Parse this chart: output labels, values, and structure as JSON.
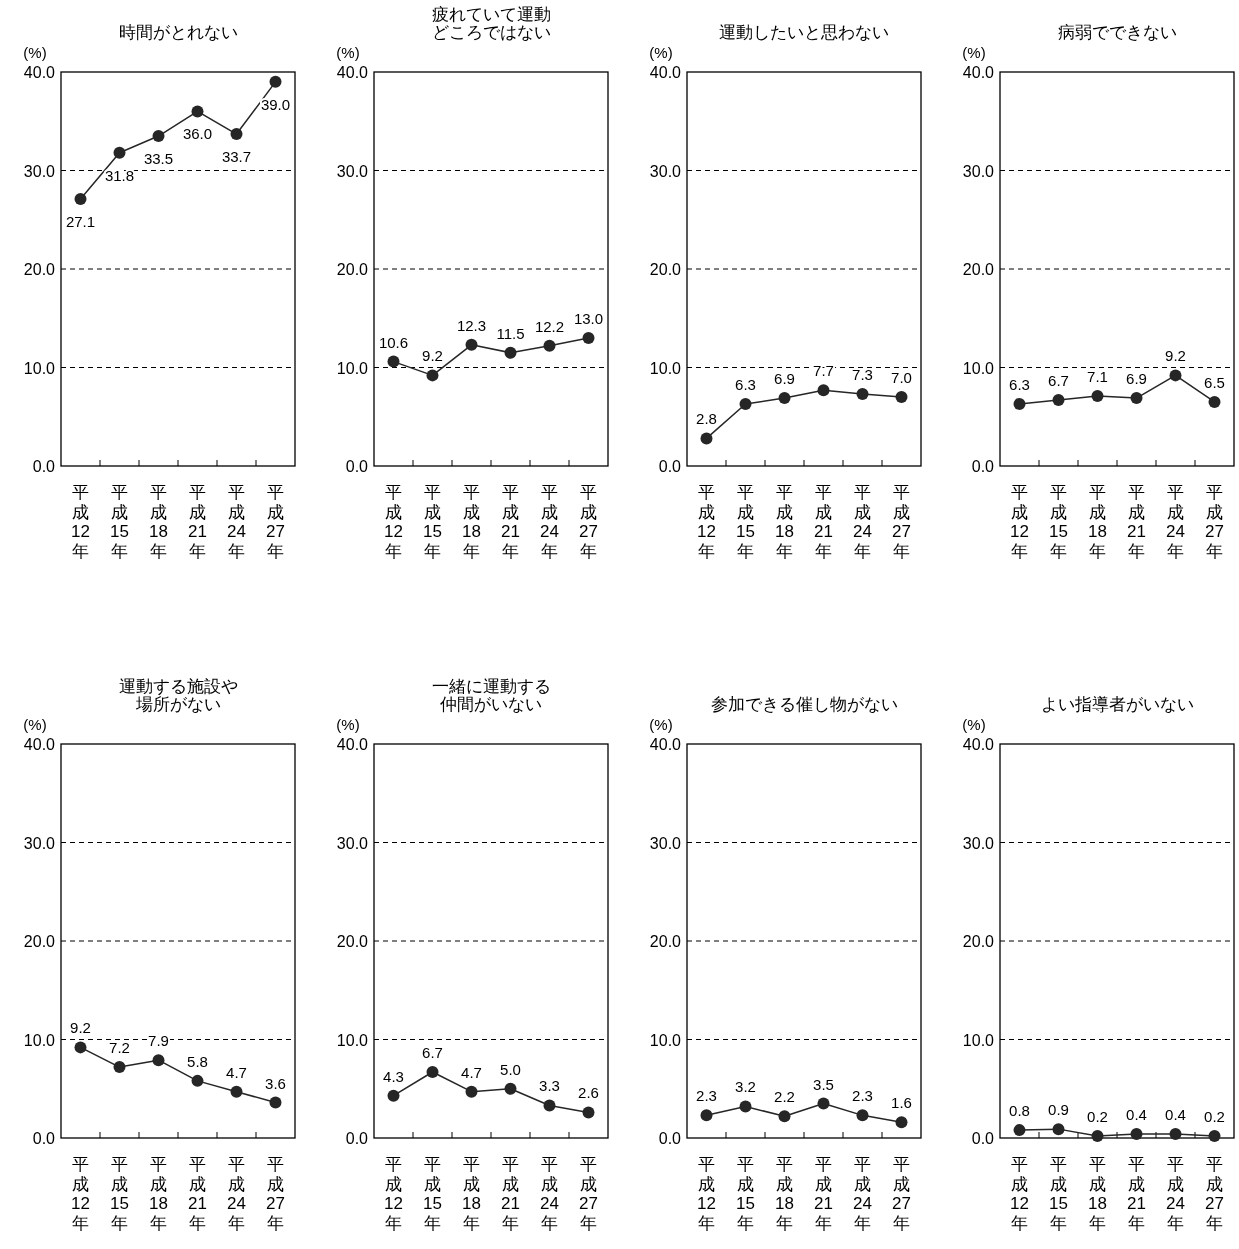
{
  "chart_data": [
    {
      "type": "line",
      "title": "時間がとれない",
      "ylabel": "(%)",
      "categories": [
        "平成12年",
        "平成15年",
        "平成18年",
        "平成21年",
        "平成24年",
        "平成27年"
      ],
      "series": [
        {
          "color": "#262626",
          "values": [
            27.1,
            31.8,
            33.5,
            36.0,
            33.7,
            39.0
          ],
          "value_labels": [
            "27.1",
            "31.8",
            "33.5",
            "36.0",
            "33.7",
            "39.0"
          ]
        }
      ],
      "ylim": [
        0,
        40
      ],
      "yticks": [
        {
          "value": 0,
          "label": "0.0"
        },
        {
          "value": 10,
          "label": "10.0"
        },
        {
          "value": 20,
          "label": "20.0"
        },
        {
          "value": 30,
          "label": "30.0"
        },
        {
          "value": 40,
          "label": "40.0"
        }
      ],
      "grid": "y",
      "marker": "circle",
      "line_style": "solid"
    },
    {
      "type": "line",
      "title": "疲れていて運動どころではない",
      "ylabel": "(%)",
      "categories": [
        "平成12年",
        "平成15年",
        "平成18年",
        "平成21年",
        "平成24年",
        "平成27年"
      ],
      "series": [
        {
          "color": "#262626",
          "values": [
            10.6,
            9.2,
            12.3,
            11.5,
            12.2,
            13.0
          ],
          "value_labels": [
            "10.6",
            "9.2",
            "12.3",
            "11.5",
            "12.2",
            "13.0"
          ]
        }
      ],
      "ylim": [
        0,
        40
      ],
      "yticks": [
        {
          "value": 0,
          "label": "0.0"
        },
        {
          "value": 10,
          "label": "10.0"
        },
        {
          "value": 20,
          "label": "20.0"
        },
        {
          "value": 30,
          "label": "30.0"
        },
        {
          "value": 40,
          "label": "40.0"
        }
      ],
      "grid": "y",
      "marker": "circle",
      "line_style": "solid"
    },
    {
      "type": "line",
      "title": "運動したいと思わない",
      "ylabel": "(%)",
      "categories": [
        "平成12年",
        "平成15年",
        "平成18年",
        "平成21年",
        "平成24年",
        "平成27年"
      ],
      "series": [
        {
          "color": "#262626",
          "values": [
            2.8,
            6.3,
            6.9,
            7.7,
            7.3,
            7.0
          ],
          "value_labels": [
            "2.8",
            "6.3",
            "6.9",
            "7.7",
            "7.3",
            "7.0"
          ]
        }
      ],
      "ylim": [
        0,
        40
      ],
      "yticks": [
        {
          "value": 0,
          "label": "0.0"
        },
        {
          "value": 10,
          "label": "10.0"
        },
        {
          "value": 20,
          "label": "20.0"
        },
        {
          "value": 30,
          "label": "30.0"
        },
        {
          "value": 40,
          "label": "40.0"
        }
      ],
      "grid": "y",
      "marker": "circle",
      "line_style": "solid"
    },
    {
      "type": "line",
      "title": "病弱でできない",
      "ylabel": "(%)",
      "categories": [
        "平成12年",
        "平成15年",
        "平成18年",
        "平成21年",
        "平成24年",
        "平成27年"
      ],
      "series": [
        {
          "color": "#262626",
          "values": [
            6.3,
            6.7,
            7.1,
            6.9,
            9.2,
            6.5
          ],
          "value_labels": [
            "6.3",
            "6.7",
            "7.1",
            "6.9",
            "9.2",
            "6.5"
          ]
        }
      ],
      "ylim": [
        0,
        40
      ],
      "yticks": [
        {
          "value": 0,
          "label": "0.0"
        },
        {
          "value": 10,
          "label": "10.0"
        },
        {
          "value": 20,
          "label": "20.0"
        },
        {
          "value": 30,
          "label": "30.0"
        },
        {
          "value": 40,
          "label": "40.0"
        }
      ],
      "grid": "y",
      "marker": "circle",
      "line_style": "solid"
    },
    {
      "type": "line",
      "title": "運動する施設や場所がない",
      "ylabel": "(%)",
      "categories": [
        "平成12年",
        "平成15年",
        "平成18年",
        "平成21年",
        "平成24年",
        "平成27年"
      ],
      "series": [
        {
          "color": "#262626",
          "values": [
            9.2,
            7.2,
            7.9,
            5.8,
            4.7,
            3.6
          ],
          "value_labels": [
            "9.2",
            "7.2",
            "7.9",
            "5.8",
            "4.7",
            "3.6"
          ]
        }
      ],
      "ylim": [
        0,
        40
      ],
      "yticks": [
        {
          "value": 0,
          "label": "0.0"
        },
        {
          "value": 10,
          "label": "10.0"
        },
        {
          "value": 20,
          "label": "20.0"
        },
        {
          "value": 30,
          "label": "30.0"
        },
        {
          "value": 40,
          "label": "40.0"
        }
      ],
      "grid": "y",
      "marker": "circle",
      "line_style": "solid"
    },
    {
      "type": "line",
      "title": "一緒に運動する仲間がいない",
      "ylabel": "(%)",
      "categories": [
        "平成12年",
        "平成15年",
        "平成18年",
        "平成21年",
        "平成24年",
        "平成27年"
      ],
      "series": [
        {
          "color": "#262626",
          "values": [
            4.3,
            6.7,
            4.7,
            5.0,
            3.3,
            2.6
          ],
          "value_labels": [
            "4.3",
            "6.7",
            "4.7",
            "5.0",
            "3.3",
            "2.6"
          ]
        }
      ],
      "ylim": [
        0,
        40
      ],
      "yticks": [
        {
          "value": 0,
          "label": "0.0"
        },
        {
          "value": 10,
          "label": "10.0"
        },
        {
          "value": 20,
          "label": "20.0"
        },
        {
          "value": 30,
          "label": "30.0"
        },
        {
          "value": 40,
          "label": "40.0"
        }
      ],
      "grid": "y",
      "marker": "circle",
      "line_style": "solid"
    },
    {
      "type": "line",
      "title": "参加できる催し物がない",
      "ylabel": "(%)",
      "categories": [
        "平成12年",
        "平成15年",
        "平成18年",
        "平成21年",
        "平成24年",
        "平成27年"
      ],
      "series": [
        {
          "color": "#262626",
          "values": [
            2.3,
            3.2,
            2.2,
            3.5,
            2.3,
            1.6
          ],
          "value_labels": [
            "2.3",
            "3.2",
            "2.2",
            "3.5",
            "2.3",
            "1.6"
          ]
        }
      ],
      "ylim": [
        0,
        40
      ],
      "yticks": [
        {
          "value": 0,
          "label": "0.0"
        },
        {
          "value": 10,
          "label": "10.0"
        },
        {
          "value": 20,
          "label": "20.0"
        },
        {
          "value": 30,
          "label": "30.0"
        },
        {
          "value": 40,
          "label": "40.0"
        }
      ],
      "grid": "y",
      "marker": "circle",
      "line_style": "solid"
    },
    {
      "type": "line",
      "title": "よい指導者がいない",
      "ylabel": "(%)",
      "categories": [
        "平成12年",
        "平成15年",
        "平成18年",
        "平成21年",
        "平成24年",
        "平成27年"
      ],
      "series": [
        {
          "color": "#262626",
          "values": [
            0.8,
            0.9,
            0.2,
            0.4,
            0.4,
            0.2
          ],
          "value_labels": [
            "0.8",
            "0.9",
            "0.2",
            "0.4",
            "0.4",
            "0.2"
          ]
        }
      ],
      "ylim": [
        0,
        40
      ],
      "yticks": [
        {
          "value": 0,
          "label": "0.0"
        },
        {
          "value": 10,
          "label": "10.0"
        },
        {
          "value": 20,
          "label": "20.0"
        },
        {
          "value": 30,
          "label": "30.0"
        },
        {
          "value": 40,
          "label": "40.0"
        }
      ],
      "grid": "y",
      "marker": "circle",
      "line_style": "solid"
    }
  ]
}
